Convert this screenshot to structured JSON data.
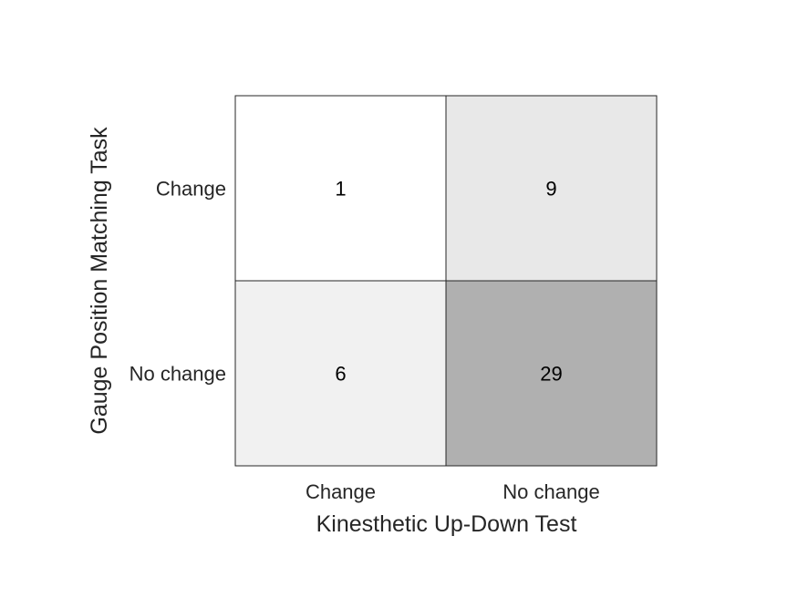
{
  "chart_data": {
    "type": "heatmap",
    "xlabel": "Kinesthetic Up-Down Test",
    "ylabel": "Gauge Position Matching Task",
    "x_categories": [
      "Change",
      "No change"
    ],
    "y_categories": [
      "Change",
      "No change"
    ],
    "values": [
      [
        1,
        9
      ],
      [
        6,
        29
      ]
    ],
    "colormap": {
      "min_color": "#ffffff",
      "max_color": "#b0b0b0"
    },
    "grid": true,
    "colorbar": false
  }
}
